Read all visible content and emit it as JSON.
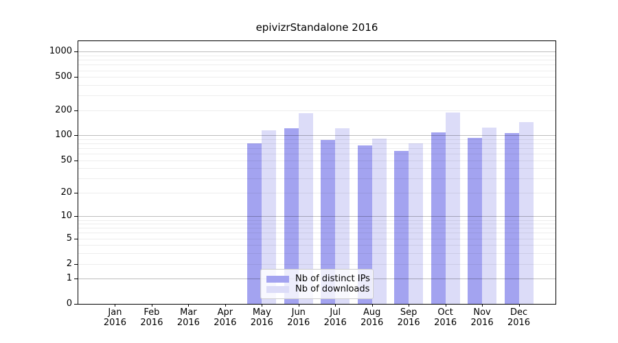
{
  "title": "epivizrStandalone 2016",
  "colors": {
    "ips_bar": "#a3a3f0",
    "downloads_bar": "#dcdcf8",
    "major_grid": "#bdbdbd",
    "minor_grid": "#ededed",
    "axis": "#000000",
    "legend_border": "#cccccc"
  },
  "legend": {
    "items": [
      {
        "label": "Nb of distinct IPs",
        "series": "ips_bar"
      },
      {
        "label": "Nb of downloads",
        "series": "downloads_bar"
      }
    ]
  },
  "chart_data": {
    "type": "bar",
    "title": "epivizrStandalone 2016",
    "categories": [
      "Jan 2016",
      "Feb 2016",
      "Mar 2016",
      "Apr 2016",
      "May 2016",
      "Jun 2016",
      "Jul 2016",
      "Aug 2016",
      "Sep 2016",
      "Oct 2016",
      "Nov 2016",
      "Dec 2016"
    ],
    "series": [
      {
        "name": "Nb of distinct IPs",
        "color": "#a3a3f0",
        "values": [
          0,
          0,
          0,
          0,
          80,
          122,
          89,
          76,
          65,
          109,
          93,
          106
        ]
      },
      {
        "name": "Nb of downloads",
        "color": "#dcdcf8",
        "values": [
          0,
          0,
          0,
          0,
          116,
          185,
          121,
          91,
          81,
          187,
          125,
          146
        ]
      }
    ],
    "xlabel": "",
    "ylabel": "",
    "y_scale": "log1p",
    "y_ticks": [
      0,
      1,
      2,
      5,
      10,
      20,
      50,
      100,
      200,
      500,
      1000
    ],
    "y_major_gridlines": [
      1,
      10,
      100,
      1000
    ],
    "ylim": [
      0,
      1350
    ],
    "grid": true,
    "legend_position": "lower center"
  }
}
